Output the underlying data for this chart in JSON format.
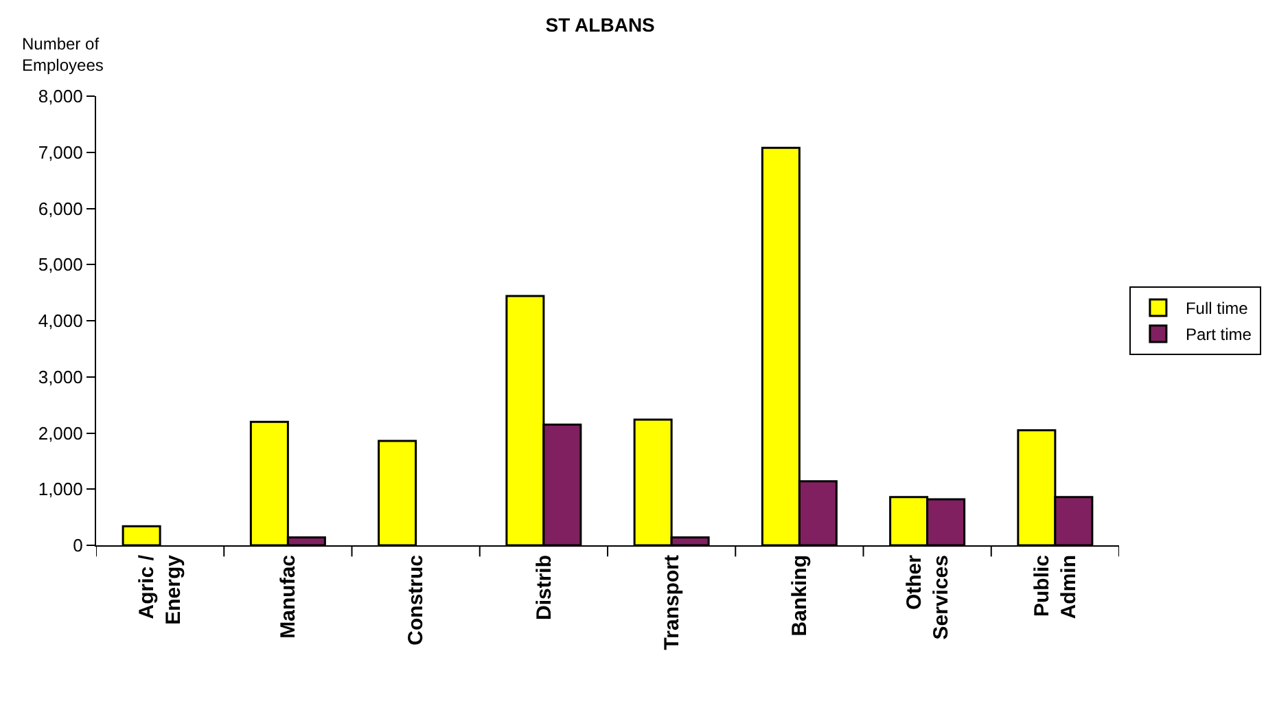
{
  "chart_data": {
    "type": "bar",
    "title": "ST ALBANS",
    "ylabel": "Number of\nEmployees",
    "categories": [
      "Agric /\nEnergy",
      "Manufac",
      "Construc",
      "Distrib",
      "Transport",
      "Banking",
      "Other\nServices",
      "Public\nAdmin"
    ],
    "series": [
      {
        "name": "Full time",
        "color": "#ffff00",
        "values": [
          340,
          2200,
          1860,
          4440,
          2240,
          7080,
          860,
          2050
        ]
      },
      {
        "name": "Part time",
        "color": "#802060",
        "values": [
          null,
          140,
          null,
          2150,
          140,
          1140,
          820,
          860
        ]
      }
    ],
    "ylim": [
      0,
      8000
    ],
    "yticks": [
      0,
      {
        "value": 1000,
        "label": "1,000"
      },
      {
        "value": 2000,
        "label": "2,000"
      },
      {
        "value": 3000,
        "label": "3,000"
      },
      {
        "value": 4000,
        "label": "4,000"
      },
      {
        "value": 5000,
        "label": "5,000"
      },
      {
        "value": 6000,
        "label": "6,000"
      },
      {
        "value": 7000,
        "label": "7,000"
      },
      {
        "value": 8000,
        "label": "8,000"
      }
    ],
    "grid": false,
    "legend": "right"
  }
}
